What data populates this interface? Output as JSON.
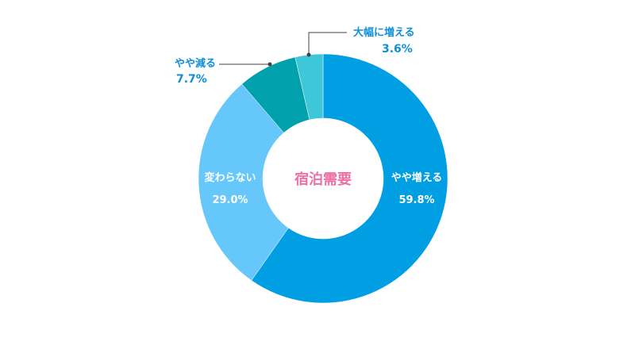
{
  "chart_data": {
    "type": "pie",
    "style": "donut",
    "center_label": "宿泊需要",
    "slices": [
      {
        "label": "やや増える",
        "value": 59.8,
        "value_text": "59.8%",
        "color": "#009fe3"
      },
      {
        "label": "変わらない",
        "value": 29.0,
        "value_text": "29.0%",
        "color": "#66c7fa"
      },
      {
        "label": "やや減る",
        "value": 7.7,
        "value_text": "7.7%",
        "color": "#01a0ad"
      },
      {
        "label": "大幅に増える",
        "value": 3.6,
        "value_text": "3.6%",
        "color": "#3ec7d8"
      }
    ],
    "colors": {
      "center_text": "#ef6fa3",
      "inner_label_text": "#ffffff",
      "outer_label_text": "#0f8fd8",
      "leader_line": "#444444"
    }
  }
}
